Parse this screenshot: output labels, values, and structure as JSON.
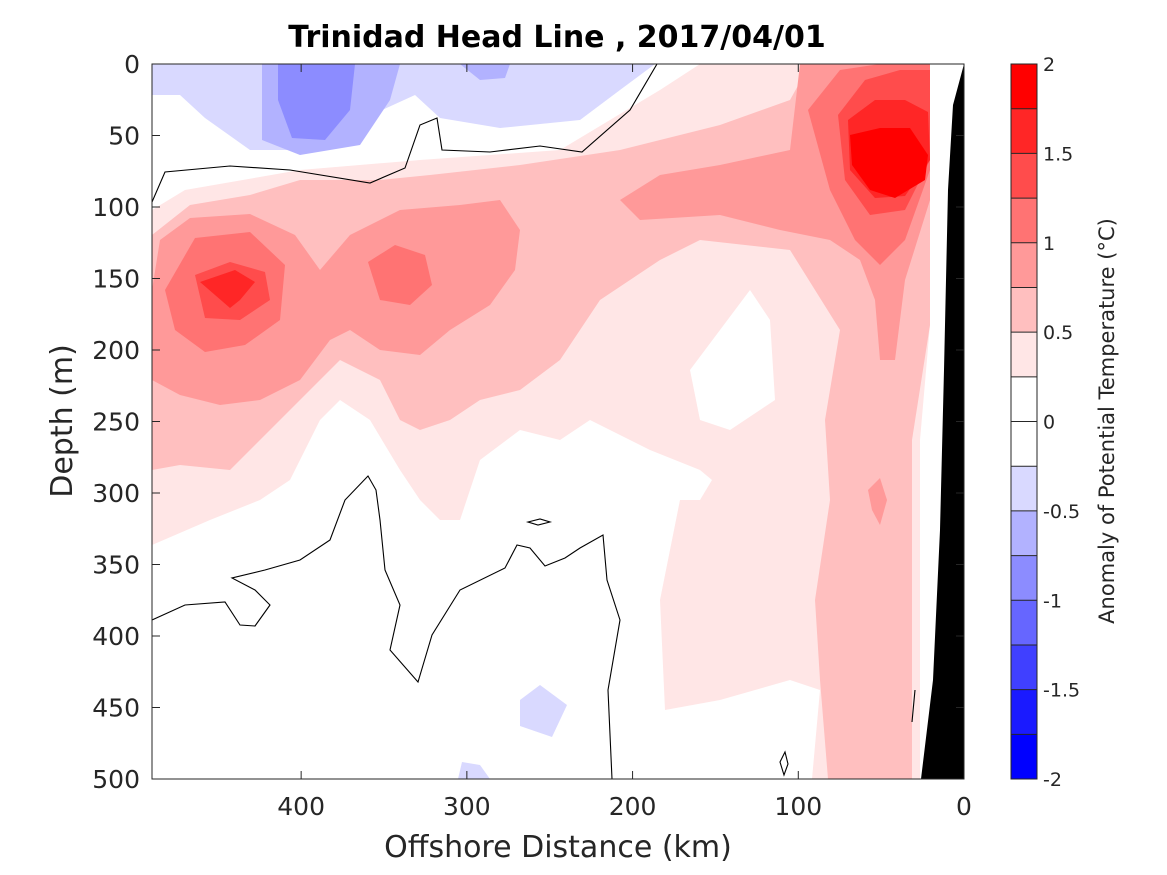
{
  "chart_data": {
    "type": "heatmap",
    "title": "Trinidad Head Line , 2017/04/01",
    "xlabel": "Offshore Distance (km)",
    "ylabel": "Depth (m)",
    "colorbar_label": "Anomaly of Potential Temperature (°C)",
    "xlim": [
      490,
      0
    ],
    "ylim": [
      0,
      500
    ],
    "x_reversed": true,
    "y_reversed": true,
    "x_ticks": [
      400,
      300,
      200,
      100,
      0
    ],
    "x_tick_labels": [
      "400",
      "300",
      "200",
      "100",
      "0"
    ],
    "y_ticks": [
      0,
      50,
      100,
      150,
      200,
      250,
      300,
      350,
      400,
      450,
      500
    ],
    "y_tick_labels": [
      "0",
      "50",
      "100",
      "150",
      "200",
      "250",
      "300",
      "350",
      "400",
      "450",
      "500"
    ],
    "colorbar_ticks": [
      2,
      1.5,
      1,
      0.5,
      0,
      -0.5,
      -1,
      -1.5,
      -2
    ],
    "colorbar_tick_labels": [
      "2",
      "1.5",
      "1",
      "0.5",
      "0",
      "-0.5",
      "-1",
      "-1.5",
      "-2"
    ],
    "clim": [
      -2,
      2
    ],
    "level_step": 0.25,
    "colorbar_colors": [
      "#ff0000",
      "#ff2626",
      "#ff4c4c",
      "#ff7373",
      "#ff9999",
      "#ffbfbf",
      "#ffe6e6",
      "#ffffff",
      "#ffffff",
      "#d9d9ff",
      "#b2b2ff",
      "#8c8cff",
      "#6666ff",
      "#4040ff",
      "#1a1aff",
      "#0000ff"
    ],
    "zero_contour": "black line",
    "bathymetry_color": "#000000",
    "features": [
      {
        "kind": "warm-core",
        "x_km": 40,
        "depth_m": 70,
        "anomaly": 2.0
      },
      {
        "kind": "warm-core",
        "x_km": 445,
        "depth_m": 155,
        "anomaly": 1.5
      },
      {
        "kind": "warm-core",
        "x_km": 335,
        "depth_m": 150,
        "anomaly": 1.25
      },
      {
        "kind": "cold-core",
        "x_km": 390,
        "depth_m": 30,
        "anomaly": -0.75
      }
    ]
  }
}
